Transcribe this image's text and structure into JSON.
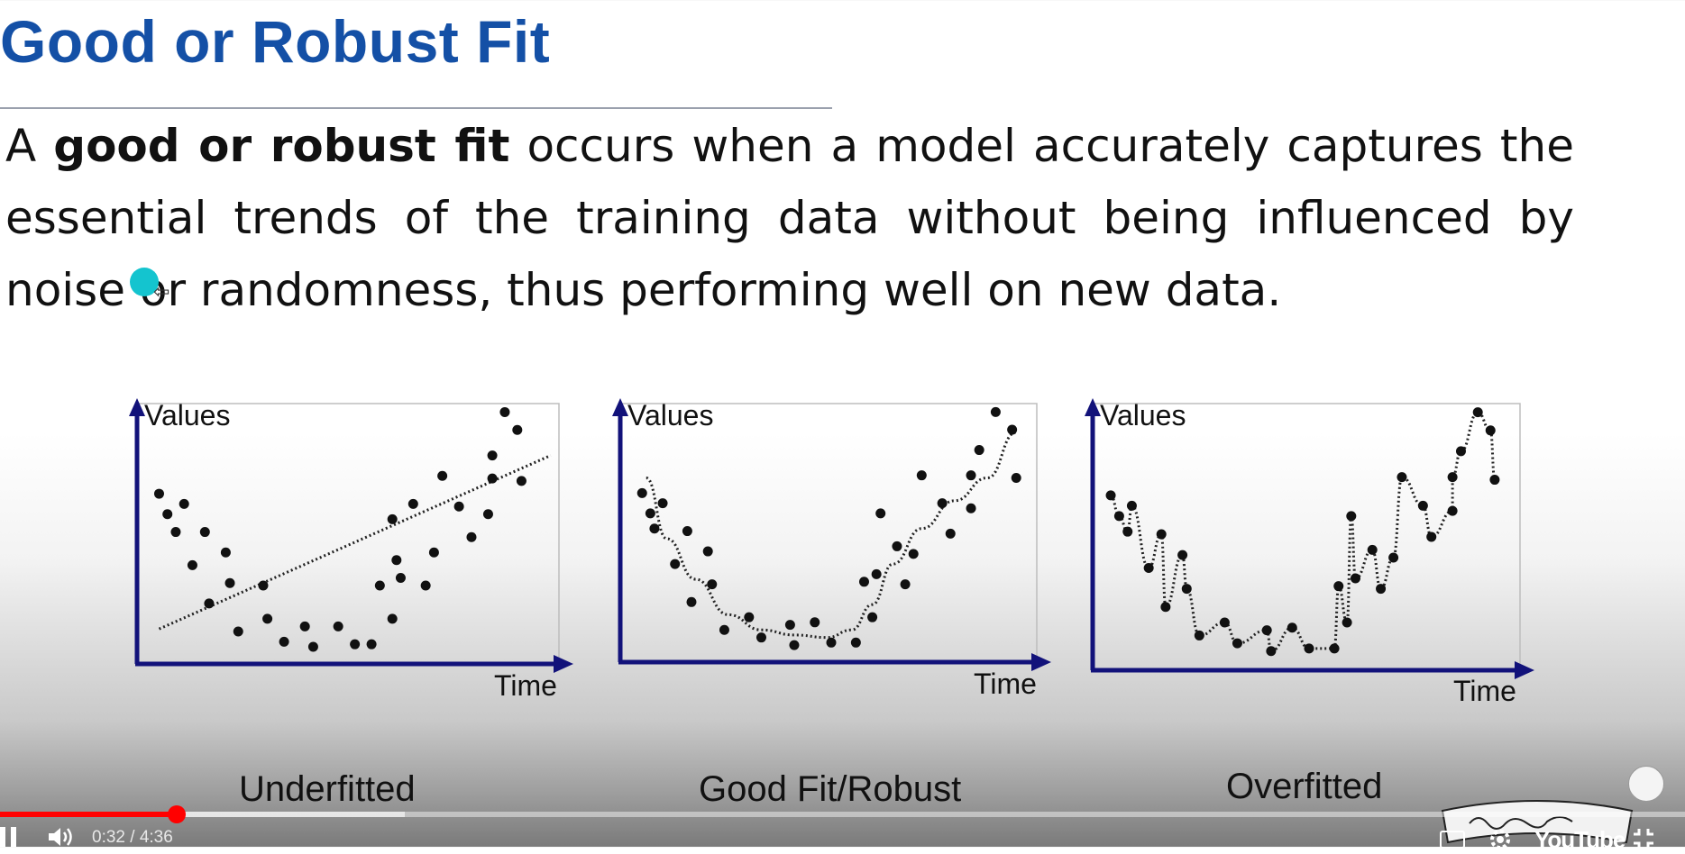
{
  "slide": {
    "title": "Good or Robust Fit",
    "body_prefix": "A ",
    "body_bold": "good or robust fit",
    "body_rest": " occurs when a model accurately captures the essential trends of the training data without being influenced by noise or randomness, thus performing well on new data."
  },
  "chart_data": [
    {
      "type": "scatter",
      "ylabel": "Values",
      "xlabel": "Time",
      "caption": "Underfitted",
      "fit": "linear",
      "points": [
        [
          0.04,
          0.66
        ],
        [
          0.06,
          0.58
        ],
        [
          0.1,
          0.62
        ],
        [
          0.08,
          0.51
        ],
        [
          0.15,
          0.51
        ],
        [
          0.12,
          0.38
        ],
        [
          0.2,
          0.43
        ],
        [
          0.21,
          0.31
        ],
        [
          0.16,
          0.23
        ],
        [
          0.23,
          0.12
        ],
        [
          0.29,
          0.3
        ],
        [
          0.3,
          0.17
        ],
        [
          0.34,
          0.08
        ],
        [
          0.39,
          0.14
        ],
        [
          0.41,
          0.06
        ],
        [
          0.47,
          0.14
        ],
        [
          0.51,
          0.07
        ],
        [
          0.55,
          0.07
        ],
        [
          0.57,
          0.3
        ],
        [
          0.6,
          0.17
        ],
        [
          0.6,
          0.56
        ],
        [
          0.61,
          0.4
        ],
        [
          0.62,
          0.33
        ],
        [
          0.65,
          0.62
        ],
        [
          0.68,
          0.3
        ],
        [
          0.7,
          0.43
        ],
        [
          0.72,
          0.73
        ],
        [
          0.76,
          0.61
        ],
        [
          0.79,
          0.49
        ],
        [
          0.83,
          0.58
        ],
        [
          0.84,
          0.72
        ],
        [
          0.84,
          0.81
        ],
        [
          0.87,
          0.98
        ],
        [
          0.9,
          0.91
        ],
        [
          0.91,
          0.71
        ]
      ],
      "fit_line": [
        [
          0.04,
          0.13
        ],
        [
          0.98,
          0.81
        ]
      ]
    },
    {
      "type": "scatter",
      "ylabel": "Values",
      "xlabel": "Time",
      "caption": "Good Fit/Robust",
      "fit": "smooth-curve",
      "points": [
        [
          0.04,
          0.66
        ],
        [
          0.06,
          0.58
        ],
        [
          0.09,
          0.62
        ],
        [
          0.07,
          0.52
        ],
        [
          0.15,
          0.51
        ],
        [
          0.12,
          0.38
        ],
        [
          0.2,
          0.43
        ],
        [
          0.21,
          0.3
        ],
        [
          0.16,
          0.23
        ],
        [
          0.24,
          0.12
        ],
        [
          0.3,
          0.17
        ],
        [
          0.33,
          0.09
        ],
        [
          0.4,
          0.14
        ],
        [
          0.41,
          0.06
        ],
        [
          0.46,
          0.15
        ],
        [
          0.5,
          0.07
        ],
        [
          0.56,
          0.07
        ],
        [
          0.58,
          0.31
        ],
        [
          0.6,
          0.17
        ],
        [
          0.61,
          0.34
        ],
        [
          0.62,
          0.58
        ],
        [
          0.66,
          0.45
        ],
        [
          0.68,
          0.3
        ],
        [
          0.7,
          0.42
        ],
        [
          0.72,
          0.73
        ],
        [
          0.77,
          0.62
        ],
        [
          0.79,
          0.5
        ],
        [
          0.84,
          0.6
        ],
        [
          0.84,
          0.73
        ],
        [
          0.86,
          0.83
        ],
        [
          0.9,
          0.98
        ],
        [
          0.94,
          0.91
        ],
        [
          0.95,
          0.72
        ]
      ],
      "fit_curve": [
        [
          0.05,
          0.72
        ],
        [
          0.1,
          0.48
        ],
        [
          0.17,
          0.32
        ],
        [
          0.25,
          0.18
        ],
        [
          0.33,
          0.12
        ],
        [
          0.41,
          0.1
        ],
        [
          0.49,
          0.09
        ],
        [
          0.55,
          0.12
        ],
        [
          0.6,
          0.22
        ],
        [
          0.65,
          0.38
        ],
        [
          0.72,
          0.52
        ],
        [
          0.8,
          0.63
        ],
        [
          0.88,
          0.72
        ],
        [
          0.95,
          0.9
        ]
      ]
    },
    {
      "type": "scatter",
      "ylabel": "Values",
      "xlabel": "Time",
      "caption": "Overfitted",
      "fit": "interpolating-curve",
      "points": [
        [
          0.03,
          0.66
        ],
        [
          0.05,
          0.58
        ],
        [
          0.08,
          0.62
        ],
        [
          0.07,
          0.52
        ],
        [
          0.15,
          0.51
        ],
        [
          0.12,
          0.38
        ],
        [
          0.2,
          0.43
        ],
        [
          0.21,
          0.3
        ],
        [
          0.16,
          0.23
        ],
        [
          0.24,
          0.12
        ],
        [
          0.3,
          0.17
        ],
        [
          0.33,
          0.09
        ],
        [
          0.4,
          0.14
        ],
        [
          0.41,
          0.06
        ],
        [
          0.46,
          0.15
        ],
        [
          0.5,
          0.07
        ],
        [
          0.56,
          0.07
        ],
        [
          0.57,
          0.31
        ],
        [
          0.59,
          0.17
        ],
        [
          0.61,
          0.34
        ],
        [
          0.6,
          0.58
        ],
        [
          0.65,
          0.45
        ],
        [
          0.67,
          0.3
        ],
        [
          0.7,
          0.42
        ],
        [
          0.72,
          0.73
        ],
        [
          0.77,
          0.62
        ],
        [
          0.79,
          0.5
        ],
        [
          0.84,
          0.6
        ],
        [
          0.84,
          0.73
        ],
        [
          0.86,
          0.83
        ],
        [
          0.9,
          0.98
        ],
        [
          0.93,
          0.91
        ],
        [
          0.94,
          0.72
        ]
      ]
    }
  ],
  "player": {
    "time": "0:32 / 4:36",
    "progress": 0.105,
    "buffered": 0.24,
    "logo": "YouTube"
  }
}
